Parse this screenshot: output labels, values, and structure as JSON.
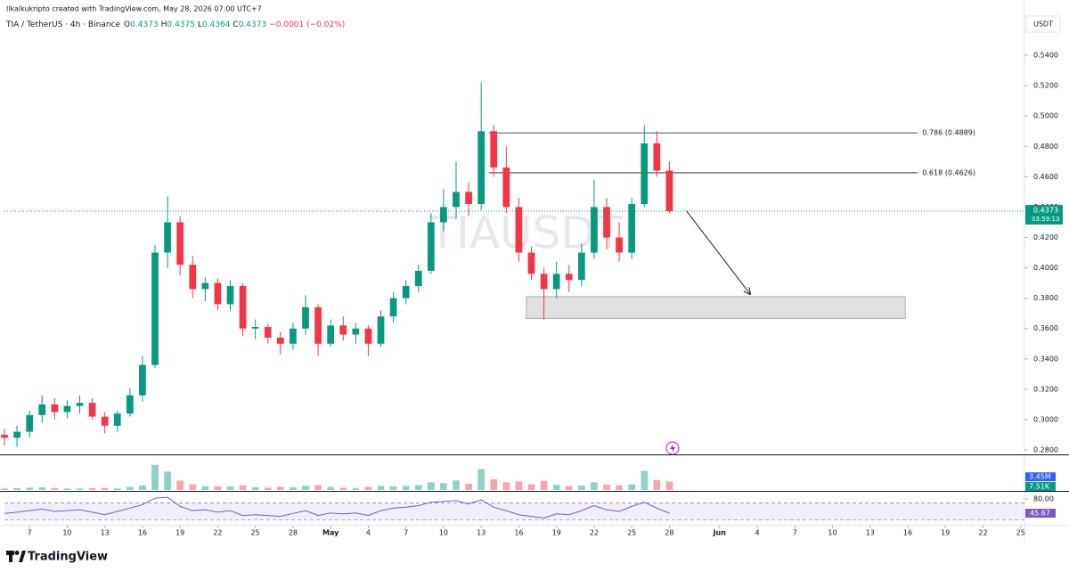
{
  "chart_data": {
    "type": "candlestick",
    "attribution": "llkalkukripto created with TradingView.com, May 28, 2026 07:00 UTC+7",
    "title": "TIA / TetherUS · 4h · Binance",
    "ohlc": [
      {
        "key": "O",
        "value": 0.4373
      },
      {
        "key": "H",
        "value": 0.4375
      },
      {
        "key": "L",
        "value": 0.4364
      },
      {
        "key": "C",
        "value": 0.4373
      }
    ],
    "change": "−0.0001 (−0.02%)",
    "watermark": "TIAUSDT",
    "currency": "USDT",
    "brand": "TradingView",
    "up_color": "#089981",
    "down_color": "#f23645",
    "x": [
      5,
      6,
      7,
      8,
      9,
      10,
      11,
      12,
      13,
      14,
      15,
      16,
      17,
      18,
      19,
      20,
      21,
      22,
      23,
      24,
      25,
      26,
      27,
      28,
      29,
      30,
      31,
      32,
      33,
      34,
      35,
      36,
      37,
      38,
      39,
      40,
      41,
      42,
      43,
      44,
      45,
      46,
      47,
      48,
      49,
      50,
      51,
      52,
      53,
      54,
      55,
      56,
      57,
      58
    ],
    "open": [
      0.29,
      0.288,
      0.292,
      0.303,
      0.31,
      0.305,
      0.309,
      0.311,
      0.302,
      0.296,
      0.304,
      0.316,
      0.336,
      0.41,
      0.43,
      0.402,
      0.386,
      0.39,
      0.376,
      0.388,
      0.36,
      0.361,
      0.354,
      0.35,
      0.36,
      0.374,
      0.35,
      0.362,
      0.356,
      0.36,
      0.35,
      0.368,
      0.38,
      0.388,
      0.398,
      0.43,
      0.44,
      0.45,
      0.442,
      0.49,
      0.466,
      0.44,
      0.41,
      0.396,
      0.386,
      0.396,
      0.392,
      0.41,
      0.44,
      0.42,
      0.41,
      0.442,
      0.482,
      0.464
    ],
    "high": [
      0.294,
      0.296,
      0.306,
      0.316,
      0.314,
      0.313,
      0.316,
      0.314,
      0.305,
      0.306,
      0.321,
      0.342,
      0.415,
      0.447,
      0.434,
      0.408,
      0.394,
      0.393,
      0.392,
      0.39,
      0.366,
      0.363,
      0.358,
      0.364,
      0.382,
      0.376,
      0.366,
      0.368,
      0.364,
      0.362,
      0.372,
      0.384,
      0.392,
      0.402,
      0.436,
      0.452,
      0.47,
      0.456,
      0.522,
      0.494,
      0.48,
      0.446,
      0.414,
      0.4,
      0.404,
      0.402,
      0.416,
      0.458,
      0.446,
      0.43,
      0.446,
      0.494,
      0.49,
      0.47
    ],
    "low": [
      0.283,
      0.282,
      0.288,
      0.298,
      0.3,
      0.301,
      0.304,
      0.3,
      0.291,
      0.292,
      0.302,
      0.312,
      0.334,
      0.4,
      0.395,
      0.38,
      0.378,
      0.372,
      0.372,
      0.355,
      0.353,
      0.35,
      0.343,
      0.346,
      0.356,
      0.342,
      0.348,
      0.352,
      0.35,
      0.342,
      0.348,
      0.364,
      0.376,
      0.384,
      0.396,
      0.424,
      0.432,
      0.434,
      0.438,
      0.46,
      0.436,
      0.404,
      0.392,
      0.366,
      0.38,
      0.384,
      0.388,
      0.406,
      0.412,
      0.404,
      0.406,
      0.44,
      0.46,
      0.436
    ],
    "close": [
      0.288,
      0.292,
      0.303,
      0.31,
      0.305,
      0.309,
      0.311,
      0.302,
      0.296,
      0.304,
      0.316,
      0.336,
      0.41,
      0.43,
      0.402,
      0.386,
      0.39,
      0.376,
      0.388,
      0.36,
      0.361,
      0.354,
      0.35,
      0.36,
      0.374,
      0.35,
      0.362,
      0.356,
      0.36,
      0.35,
      0.368,
      0.38,
      0.388,
      0.398,
      0.43,
      0.44,
      0.45,
      0.442,
      0.49,
      0.466,
      0.44,
      0.41,
      0.396,
      0.386,
      0.396,
      0.392,
      0.41,
      0.44,
      0.42,
      0.41,
      0.442,
      0.482,
      0.464,
      0.4373
    ],
    "xlim": [
      5,
      86.3
    ],
    "ylim": [
      0.2771,
      0.5676
    ],
    "xticks": [
      7,
      10,
      13,
      16,
      19,
      22,
      25,
      28,
      {
        "value": 31,
        "label": "May"
      },
      {
        "value": 34,
        "label": "4"
      },
      {
        "value": 37,
        "label": "7"
      },
      {
        "value": 40,
        "label": "10"
      },
      {
        "value": 43,
        "label": "13"
      },
      {
        "value": 46,
        "label": "16"
      },
      {
        "value": 49,
        "label": "19"
      },
      {
        "value": 52,
        "label": "22"
      },
      {
        "value": 55,
        "label": "25"
      },
      {
        "value": 58,
        "label": "28"
      },
      {
        "value": 62,
        "label": "Jun"
      },
      {
        "value": 65,
        "label": "4"
      },
      {
        "value": 68,
        "label": "7"
      },
      {
        "value": 71,
        "label": "10"
      },
      {
        "value": 74,
        "label": "13"
      },
      {
        "value": 77,
        "label": "16"
      },
      {
        "value": 80,
        "label": "19"
      },
      {
        "value": 83,
        "label": "22"
      },
      {
        "value": 86,
        "label": "25"
      }
    ],
    "yticks": [
      {
        "value": 0.28,
        "label": "0.2800"
      },
      {
        "value": 0.3,
        "label": "0.3000"
      },
      {
        "value": 0.32,
        "label": "0.3200"
      },
      {
        "value": 0.34,
        "label": "0.3400"
      },
      {
        "value": 0.36,
        "label": "0.3600"
      },
      {
        "value": 0.38,
        "label": "0.3800"
      },
      {
        "value": 0.4,
        "label": "0.4000"
      },
      {
        "value": 0.42,
        "label": "0.4200"
      },
      {
        "value": 0.44,
        "label": "0.4400"
      },
      {
        "value": 0.46,
        "label": "0.4600"
      },
      {
        "value": 0.48,
        "label": "0.4800"
      },
      {
        "value": 0.5,
        "label": "0.5000"
      },
      {
        "value": 0.52,
        "label": "0.5200"
      },
      {
        "value": 0.54,
        "label": "0.5400"
      }
    ],
    "grid": false,
    "last_price": {
      "value": 0.4373,
      "label": "0.4373"
    },
    "countdown": "03:59:13",
    "fib_levels": [
      {
        "label": "0.786 (0.4889)",
        "value": 0.4889
      },
      {
        "label": "0.618 (0.4626)",
        "value": 0.4626
      }
    ],
    "fib_x": [
      43.6,
      77.8
    ],
    "zone": {
      "x": [
        46.6,
        76.8
      ],
      "y": [
        0.3665,
        0.381
      ]
    },
    "volume": {
      "values": [
        0.4,
        0.5,
        0.6,
        0.7,
        0.5,
        0.4,
        0.4,
        0.5,
        0.5,
        0.4,
        0.8,
        1.2,
        6.5,
        4.8,
        2.5,
        1.5,
        1.0,
        1.0,
        0.9,
        1.2,
        0.7,
        0.6,
        0.8,
        0.7,
        1.1,
        1.3,
        0.8,
        0.6,
        0.5,
        0.8,
        1.1,
        1.0,
        1.1,
        1.3,
        2.0,
        1.8,
        2.5,
        1.6,
        5.5,
        2.8,
        2.0,
        2.2,
        1.5,
        2.4,
        1.3,
        1.0,
        1.2,
        2.0,
        1.4,
        1.2,
        1.5,
        5.0,
        2.6,
        2.2
      ],
      "ylim": [
        0,
        8.6
      ],
      "labels": [
        {
          "value": 3.45,
          "label": "3.45M",
          "color": "#2962ff"
        },
        {
          "value": 0.00751,
          "label": "7.51K",
          "color": "#089981"
        }
      ]
    },
    "rsi": {
      "values": [
        45,
        48,
        52,
        56,
        50,
        52,
        54,
        48,
        42,
        50,
        58,
        66,
        82,
        84,
        62,
        52,
        54,
        48,
        52,
        40,
        42,
        40,
        38,
        45,
        52,
        40,
        46,
        44,
        46,
        40,
        52,
        58,
        60,
        64,
        72,
        74,
        76,
        68,
        78,
        60,
        52,
        42,
        38,
        34,
        44,
        42,
        52,
        64,
        54,
        50,
        62,
        72,
        58,
        45.67
      ],
      "ylim": [
        17.8,
        95
      ],
      "band": [
        70,
        30
      ],
      "color": "#7e57c2",
      "ticks": [
        {
          "value": 80,
          "label": "80.00"
        }
      ],
      "last_label": {
        "value": 45.67,
        "label": "45.67"
      }
    }
  }
}
